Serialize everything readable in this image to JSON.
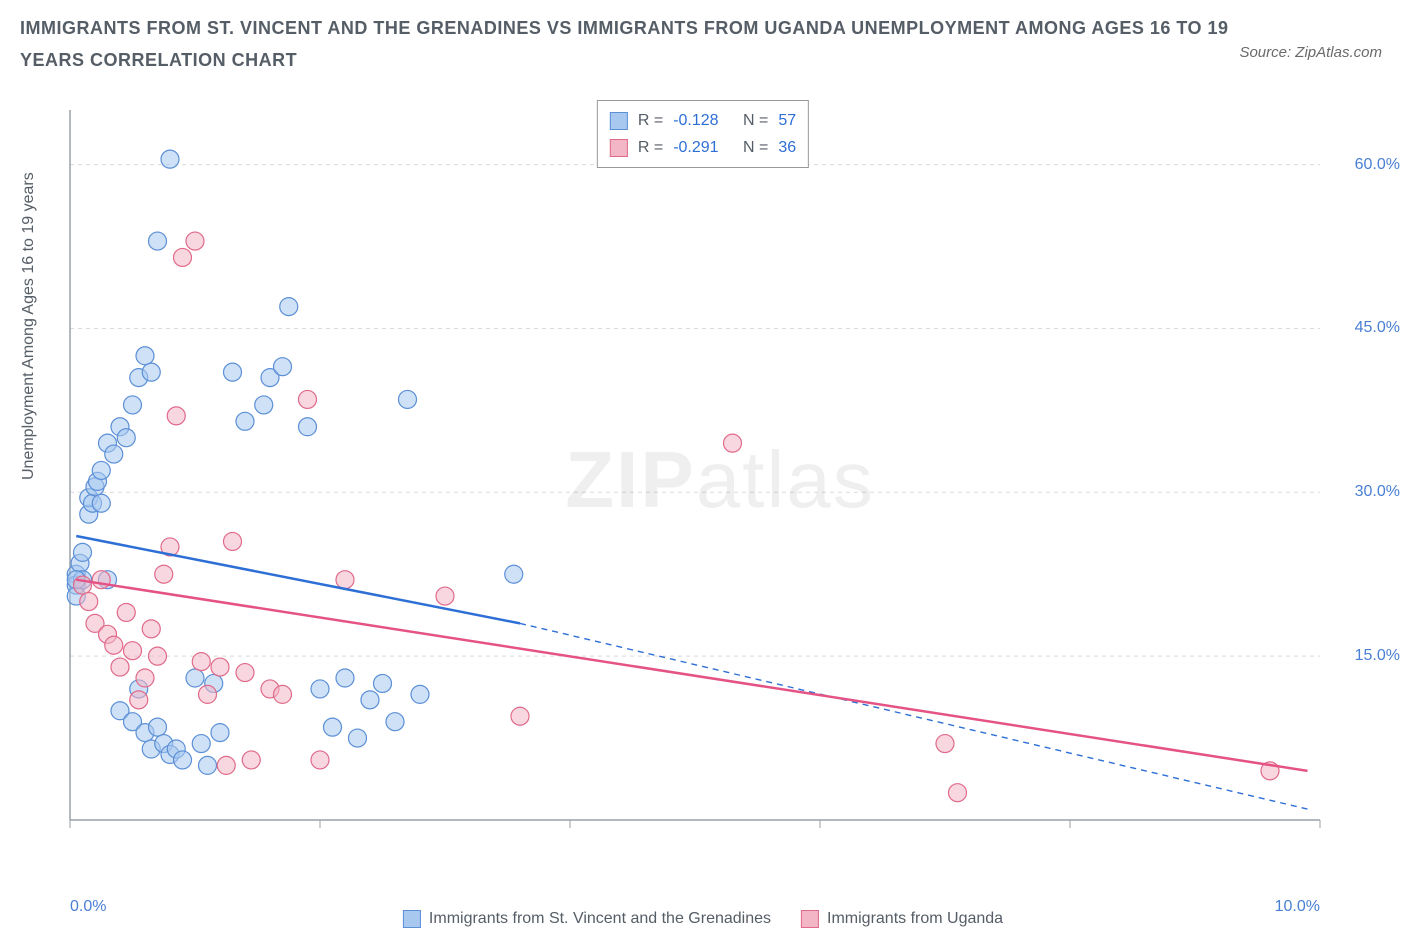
{
  "title": "IMMIGRANTS FROM ST. VINCENT AND THE GRENADINES VS IMMIGRANTS FROM UGANDA UNEMPLOYMENT AMONG AGES 16 TO 19 YEARS CORRELATION CHART",
  "source": "Source: ZipAtlas.com",
  "ylabel": "Unemployment Among Ages 16 to 19 years",
  "watermark": {
    "bold": "ZIP",
    "light": "atlas"
  },
  "chart": {
    "type": "scatter",
    "xlim": [
      0,
      10
    ],
    "ylim": [
      0,
      65
    ],
    "x_ticks": [
      0,
      2,
      4,
      6,
      8,
      10
    ],
    "x_tick_labels": [
      "0.0%",
      "",
      "",
      "",
      "",
      "10.0%"
    ],
    "y_ticks": [
      15,
      30,
      45,
      60
    ],
    "y_tick_labels": [
      "15.0%",
      "30.0%",
      "45.0%",
      "60.0%"
    ],
    "grid_color": "#d9d9d9",
    "axis_color": "#9aa0a6",
    "background_color": "#ffffff",
    "point_radius": 9,
    "point_opacity": 0.55,
    "line_width": 2.5,
    "series": [
      {
        "name": "Immigrants from St. Vincent and the Grenadines",
        "short": "series_a",
        "fill_color": "#a8c8f0",
        "stroke_color": "#5b8fd6",
        "line_color": "#2e6fd6",
        "R": "-0.128",
        "N": "57",
        "trend": {
          "x1": 0.05,
          "y1": 26.0,
          "x2": 3.6,
          "y2": 18.0
        },
        "trend_ext": {
          "x1": 3.6,
          "y1": 18.0,
          "x2": 9.9,
          "y2": 1.0
        },
        "points": [
          [
            0.05,
            22.5
          ],
          [
            0.05,
            21.5
          ],
          [
            0.05,
            20.5
          ],
          [
            0.08,
            23.5
          ],
          [
            0.1,
            22.0
          ],
          [
            0.1,
            24.5
          ],
          [
            0.15,
            28.0
          ],
          [
            0.15,
            29.5
          ],
          [
            0.18,
            29.0
          ],
          [
            0.2,
            30.5
          ],
          [
            0.22,
            31.0
          ],
          [
            0.25,
            29.0
          ],
          [
            0.25,
            32.0
          ],
          [
            0.3,
            34.5
          ],
          [
            0.35,
            33.5
          ],
          [
            0.4,
            36.0
          ],
          [
            0.45,
            35.0
          ],
          [
            0.5,
            38.0
          ],
          [
            0.55,
            40.5
          ],
          [
            0.6,
            42.5
          ],
          [
            0.65,
            41.0
          ],
          [
            0.7,
            53.0
          ],
          [
            0.8,
            60.5
          ],
          [
            0.05,
            22.0
          ],
          [
            0.3,
            22.0
          ],
          [
            0.4,
            10.0
          ],
          [
            0.5,
            9.0
          ],
          [
            0.55,
            12.0
          ],
          [
            0.6,
            8.0
          ],
          [
            0.65,
            6.5
          ],
          [
            0.7,
            8.5
          ],
          [
            0.75,
            7.0
          ],
          [
            0.8,
            6.0
          ],
          [
            0.85,
            6.5
          ],
          [
            0.9,
            5.5
          ],
          [
            1.0,
            13.0
          ],
          [
            1.05,
            7.0
          ],
          [
            1.1,
            5.0
          ],
          [
            1.15,
            12.5
          ],
          [
            1.2,
            8.0
          ],
          [
            1.3,
            41.0
          ],
          [
            1.4,
            36.5
          ],
          [
            1.55,
            38.0
          ],
          [
            1.6,
            40.5
          ],
          [
            1.7,
            41.5
          ],
          [
            1.75,
            47.0
          ],
          [
            1.9,
            36.0
          ],
          [
            2.0,
            12.0
          ],
          [
            2.1,
            8.5
          ],
          [
            2.2,
            13.0
          ],
          [
            2.3,
            7.5
          ],
          [
            2.4,
            11.0
          ],
          [
            2.5,
            12.5
          ],
          [
            2.6,
            9.0
          ],
          [
            2.7,
            38.5
          ],
          [
            2.8,
            11.5
          ],
          [
            3.55,
            22.5
          ]
        ]
      },
      {
        "name": "Immigrants from Uganda",
        "short": "series_b",
        "fill_color": "#f3b6c6",
        "stroke_color": "#e06a8a",
        "line_color": "#e55385",
        "R": "-0.291",
        "N": "36",
        "trend": {
          "x1": 0.05,
          "y1": 22.0,
          "x2": 9.9,
          "y2": 4.5
        },
        "points": [
          [
            0.1,
            21.5
          ],
          [
            0.15,
            20.0
          ],
          [
            0.2,
            18.0
          ],
          [
            0.25,
            22.0
          ],
          [
            0.3,
            17.0
          ],
          [
            0.35,
            16.0
          ],
          [
            0.4,
            14.0
          ],
          [
            0.45,
            19.0
          ],
          [
            0.5,
            15.5
          ],
          [
            0.55,
            11.0
          ],
          [
            0.6,
            13.0
          ],
          [
            0.65,
            17.5
          ],
          [
            0.7,
            15.0
          ],
          [
            0.75,
            22.5
          ],
          [
            0.8,
            25.0
          ],
          [
            0.85,
            37.0
          ],
          [
            0.9,
            51.5
          ],
          [
            1.0,
            53.0
          ],
          [
            1.05,
            14.5
          ],
          [
            1.1,
            11.5
          ],
          [
            1.2,
            14.0
          ],
          [
            1.25,
            5.0
          ],
          [
            1.3,
            25.5
          ],
          [
            1.4,
            13.5
          ],
          [
            1.45,
            5.5
          ],
          [
            1.6,
            12.0
          ],
          [
            1.7,
            11.5
          ],
          [
            1.9,
            38.5
          ],
          [
            2.0,
            5.5
          ],
          [
            2.2,
            22.0
          ],
          [
            3.0,
            20.5
          ],
          [
            3.6,
            9.5
          ],
          [
            5.3,
            34.5
          ],
          [
            7.0,
            7.0
          ],
          [
            7.1,
            2.5
          ],
          [
            9.6,
            4.5
          ]
        ]
      }
    ]
  },
  "legend_top": {
    "R_label": "R =",
    "N_label": "N ="
  },
  "legend_bottom": [
    {
      "series": 0
    },
    {
      "series": 1
    }
  ]
}
